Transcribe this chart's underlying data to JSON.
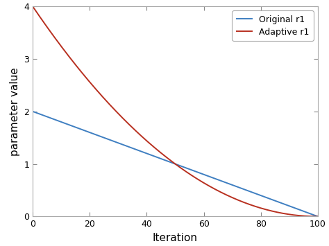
{
  "title": "",
  "xlabel": "Iteration",
  "ylabel": "parameter value",
  "xlim": [
    0,
    100
  ],
  "ylim": [
    0,
    4
  ],
  "xticks": [
    0,
    20,
    40,
    60,
    80,
    100
  ],
  "yticks": [
    0,
    1,
    2,
    3,
    4
  ],
  "original_start": 2.0,
  "original_end": 0.0,
  "adaptive_start": 4.0,
  "adaptive_end": 0.0,
  "n_iterations": 100,
  "adaptive_power": 2.5,
  "line_color_original": "#3f7fc1",
  "line_color_adaptive": "#b83020",
  "line_width": 1.4,
  "legend_labels": [
    "Original r1",
    "Adaptive r1"
  ],
  "background_color": "#ffffff",
  "axes_edge_color": "#aaaaaa",
  "font_size_label": 11,
  "font_size_tick": 9,
  "font_size_legend": 9
}
